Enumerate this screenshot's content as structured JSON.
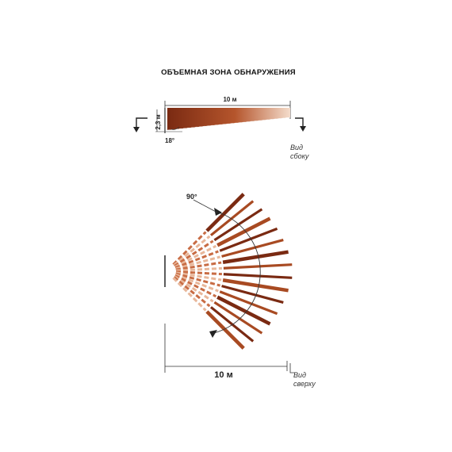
{
  "title": "ОБЪЕМНАЯ ЗОНА ОБНАРУЖЕНИЯ",
  "side_view": {
    "length_label": "10 м",
    "height_label": "2,3 м",
    "angle_label": "18°",
    "caption_line1": "Вид",
    "caption_line2": "сбоку"
  },
  "top_view": {
    "angle_label": "90°",
    "length_label": "10 м",
    "caption_line1": "Вид",
    "caption_line2": "сверху"
  },
  "colors": {
    "beam_dark": "#7a2a12",
    "beam_mid": "#b5552c",
    "beam_light": "#e8b79a",
    "line": "#333333"
  },
  "icons": [
    "section-arrow-icon",
    "section-arrow-icon"
  ]
}
